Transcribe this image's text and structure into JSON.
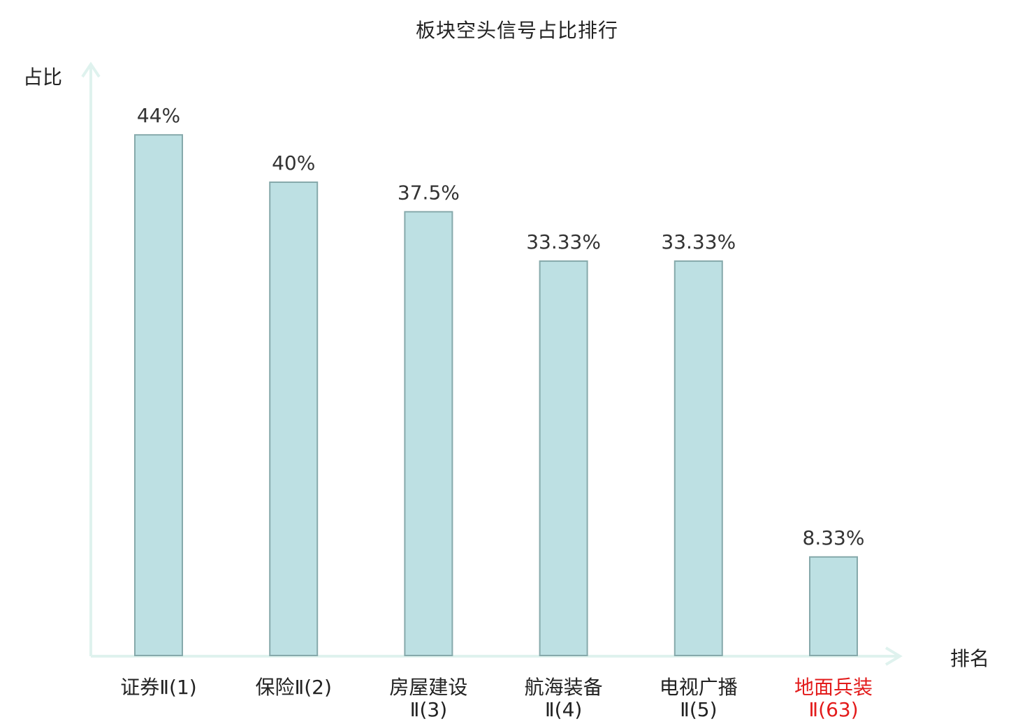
{
  "chart_data": {
    "type": "bar",
    "title": "板块空头信号占比排行",
    "xlabel": "排名",
    "ylabel": "占比",
    "ylim": [
      0,
      50
    ],
    "grid": false,
    "categories": [
      {
        "line1": "证券Ⅱ(1)",
        "line2": "",
        "highlight": false
      },
      {
        "line1": "保险Ⅱ(2)",
        "line2": "",
        "highlight": false
      },
      {
        "line1": "房屋建设",
        "line2": "Ⅱ(3)",
        "highlight": false
      },
      {
        "line1": "航海装备",
        "line2": "Ⅱ(4)",
        "highlight": false
      },
      {
        "line1": "电视广播",
        "line2": "Ⅱ(5)",
        "highlight": false
      },
      {
        "line1": "地面兵装",
        "line2": "Ⅱ(63)",
        "highlight": true
      }
    ],
    "values": [
      44,
      40,
      37.5,
      33.33,
      33.33,
      8.33
    ],
    "value_labels": [
      "44%",
      "40%",
      "37.5%",
      "33.33%",
      "33.33%",
      "8.33%"
    ],
    "colors": {
      "bar_fill": "#bde0e3",
      "bar_stroke": "#86a9ab",
      "axis": "#dff2ee",
      "text": "#222222",
      "value_text": "#333333",
      "highlight_text": "#e31b1b"
    }
  }
}
